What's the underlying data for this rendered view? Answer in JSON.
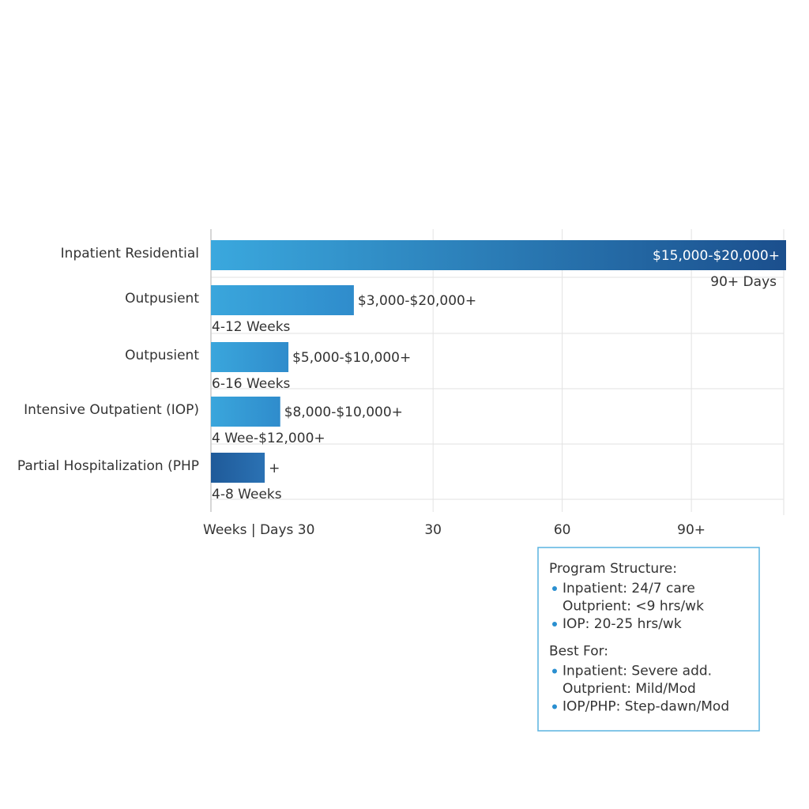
{
  "chart_data": {
    "type": "bar",
    "orientation": "horizontal",
    "categories": [
      "Inpatient Residential",
      "Outpusient",
      "Outpusient",
      "Intensive Outpatient (IOP)",
      "Partial Hospitalization (PHP"
    ],
    "values": [
      112,
      11.6,
      -3.6,
      -5.5,
      -9.1
    ],
    "colors": [
      [
        "#3aa8de",
        "#1b4f8d"
      ],
      [
        "#3aa6dc",
        "#2f8ccc"
      ],
      [
        "#3aa6dc",
        "#2f8ccc"
      ],
      [
        "#3aa6dc",
        "#2f8ccc"
      ],
      [
        "#1f5a99",
        "#2b72b4"
      ]
    ],
    "cost_labels": [
      "$15,000-$20,000+",
      "$3,000-$20,000+",
      "$5,000-$10,000+",
      "$8,000-$10,000+",
      "+"
    ],
    "duration_labels": [
      "90+ Days",
      "4-12 Weeks",
      "6-16 Weeks",
      "4 Wee-$12,000+",
      "4-8 Weeks"
    ],
    "xlabel": "Weeks | Days 30",
    "xlim": [
      -21.6,
      112
    ],
    "xticks": [
      30,
      60,
      {
        "value": 90,
        "label": "90+"
      }
    ],
    "grid": true,
    "notes": [
      {
        "title": "Program Structure:",
        "items": [
          {
            "text": "Inpatient: 24/7 care",
            "bullet": true
          },
          {
            "text": "Outprient: <9 hrs/wk",
            "bullet": false
          },
          {
            "text": "IOP: 20-25 hrs/wk",
            "bullet": true
          }
        ]
      },
      {
        "title": "Best For:",
        "items": [
          {
            "text": "Inpatient: Severe add.",
            "bullet": true
          },
          {
            "text": "Outprient: Mild/Mod",
            "bullet": false
          },
          {
            "text": "IOP/PHP: Step-dawn/Mod",
            "bullet": true
          }
        ]
      }
    ]
  }
}
